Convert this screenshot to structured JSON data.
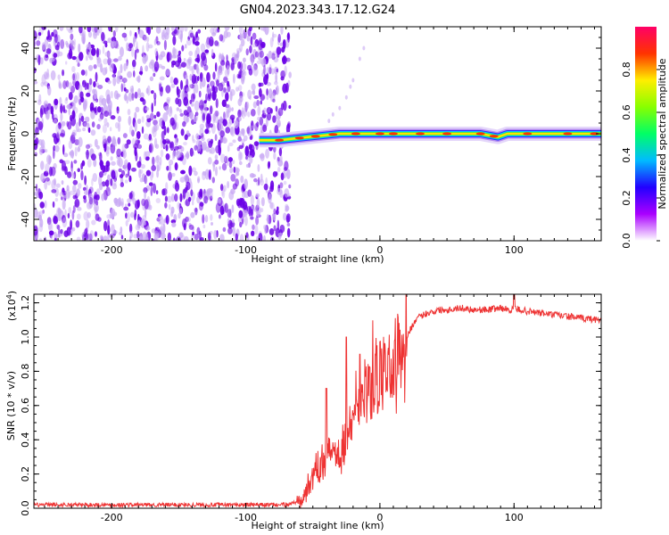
{
  "page_title": "GN04.2023.343.17.12.G24",
  "colors": {
    "spec_primary": "#6a00e6",
    "spec_light": "#c8a8f4",
    "snr_line": "#ee3333",
    "colorbar": [
      "#ffffff",
      "#aa00ff",
      "#2200ff",
      "#00bbff",
      "#00ff66",
      "#88ff00",
      "#ffee00",
      "#ff3300",
      "#ff0066"
    ]
  },
  "chart_data": [
    {
      "type": "heatmap",
      "title": "GN04.2023.343.17.12.G24",
      "xlabel": "Height of straight line (km)",
      "ylabel": "Frequency (Hz)",
      "xlim": [
        -258,
        165
      ],
      "ylim": [
        -50,
        50
      ],
      "xticks": [
        -200,
        -100,
        0,
        100
      ],
      "xtick_labels": [
        "-200",
        "-100",
        "0",
        "100"
      ],
      "yticks": [
        -40,
        -20,
        0,
        20,
        40
      ],
      "ytick_labels": [
        "-40",
        "-20",
        "0",
        "20",
        "40"
      ],
      "noise_region_x": [
        -258,
        -75
      ],
      "signal_line": {
        "x": [
          -90,
          -80,
          -75,
          -60,
          -45,
          -30,
          -15,
          0,
          15,
          40,
          75,
          88,
          95,
          120,
          165
        ],
        "y": [
          -3,
          -3,
          -3,
          -2,
          -1,
          0,
          0,
          0,
          0,
          0,
          0,
          -1.5,
          0,
          0,
          0
        ],
        "amplitude": [
          0.3,
          0.4,
          0.5,
          0.6,
          0.65,
          0.8,
          0.75,
          0.85,
          0.9,
          0.85,
          0.85,
          0.8,
          0.85,
          0.85,
          0.75
        ]
      },
      "colorbar": {
        "label": "Normalized spectral amplitude",
        "range": [
          0,
          1
        ],
        "ticks": [
          0.0,
          0.2,
          0.4,
          0.6,
          0.8
        ],
        "tick_labels": [
          "0.0",
          "0.2",
          "0.4",
          "0.6",
          "0.8"
        ]
      }
    },
    {
      "type": "line",
      "xlabel": "Height of straight line (km)",
      "ylabel": "SNR (10 * v/v)",
      "ylabel_exp": "(x10",
      "ylabel_exp_power": "4",
      "ylabel_exp_close": ")",
      "xlim": [
        -258,
        165
      ],
      "ylim": [
        0,
        1.25
      ],
      "xticks": [
        -200,
        -100,
        0,
        100
      ],
      "xtick_labels": [
        "-200",
        "-100",
        "0",
        "100"
      ],
      "yticks": [
        0.0,
        0.2,
        0.4,
        0.6,
        0.8,
        1.0,
        1.2
      ],
      "ytick_labels": [
        "0.0",
        "0.2",
        "0.4",
        "0.6",
        "0.8",
        "1.0",
        "1.2"
      ],
      "series": [
        {
          "x": [
            -258,
            -200,
            -150,
            -100,
            -70,
            -60,
            -55,
            -50,
            -45,
            -40,
            -35,
            -30,
            -25,
            -20,
            -15,
            -10,
            -5,
            0,
            5,
            10,
            15,
            20,
            25,
            30,
            35,
            40,
            45,
            50,
            60,
            70,
            80,
            90,
            95,
            100,
            105,
            110,
            120,
            130,
            140,
            150,
            165
          ],
          "y": [
            0.02,
            0.02,
            0.02,
            0.02,
            0.02,
            0.04,
            0.1,
            0.2,
            0.25,
            0.3,
            0.33,
            0.36,
            0.4,
            0.5,
            0.6,
            0.66,
            0.72,
            0.76,
            0.8,
            0.86,
            0.92,
            1.0,
            1.08,
            1.12,
            1.14,
            1.15,
            1.16,
            1.16,
            1.17,
            1.16,
            1.16,
            1.17,
            1.16,
            1.16,
            1.16,
            1.15,
            1.14,
            1.13,
            1.12,
            1.11,
            1.1
          ],
          "spike_x": [
            -40,
            -25,
            -15,
            100
          ],
          "spike_y": [
            0.7,
            1.0,
            0.9,
            1.25
          ]
        }
      ]
    }
  ]
}
